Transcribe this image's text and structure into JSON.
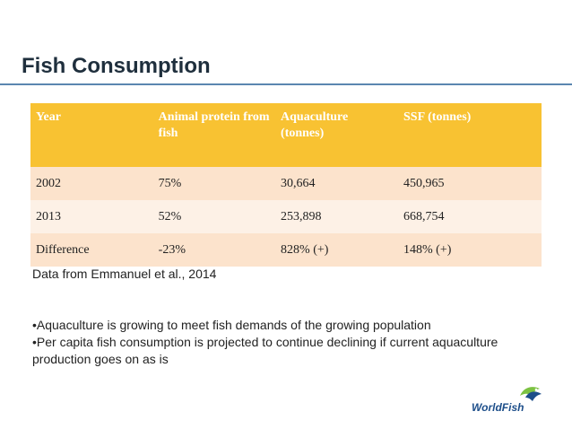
{
  "slide": {
    "title": "Fish Consumption"
  },
  "table": {
    "headers": [
      "Year",
      "Animal protein from fish",
      "Aquaculture (tonnes)",
      "SSF (tonnes)"
    ],
    "rows": [
      [
        "2002",
        "75%",
        "30,664",
        "450,965"
      ],
      [
        "2013",
        "52%",
        "253,898",
        "668,754"
      ],
      [
        "Difference",
        "-23%",
        "828% (+)",
        "148% (+)"
      ]
    ]
  },
  "source_note": "Data from Emmanuel et al., 2014",
  "bullets": [
    "•Aquaculture is growing to meet fish demands of the growing population",
    "•Per capita fish consumption is projected to continue declining if current aquaculture production goes on as is"
  ],
  "logo": {
    "text": "WorldFish",
    "icon": "fish-logo-icon"
  },
  "colors": {
    "header_bg": "#f8c232",
    "row_dark": "#fce3cc",
    "row_light": "#fdf1e6",
    "rule": "#5b86b0",
    "logo_blue": "#1d4e8a",
    "logo_green": "#7cc242"
  }
}
